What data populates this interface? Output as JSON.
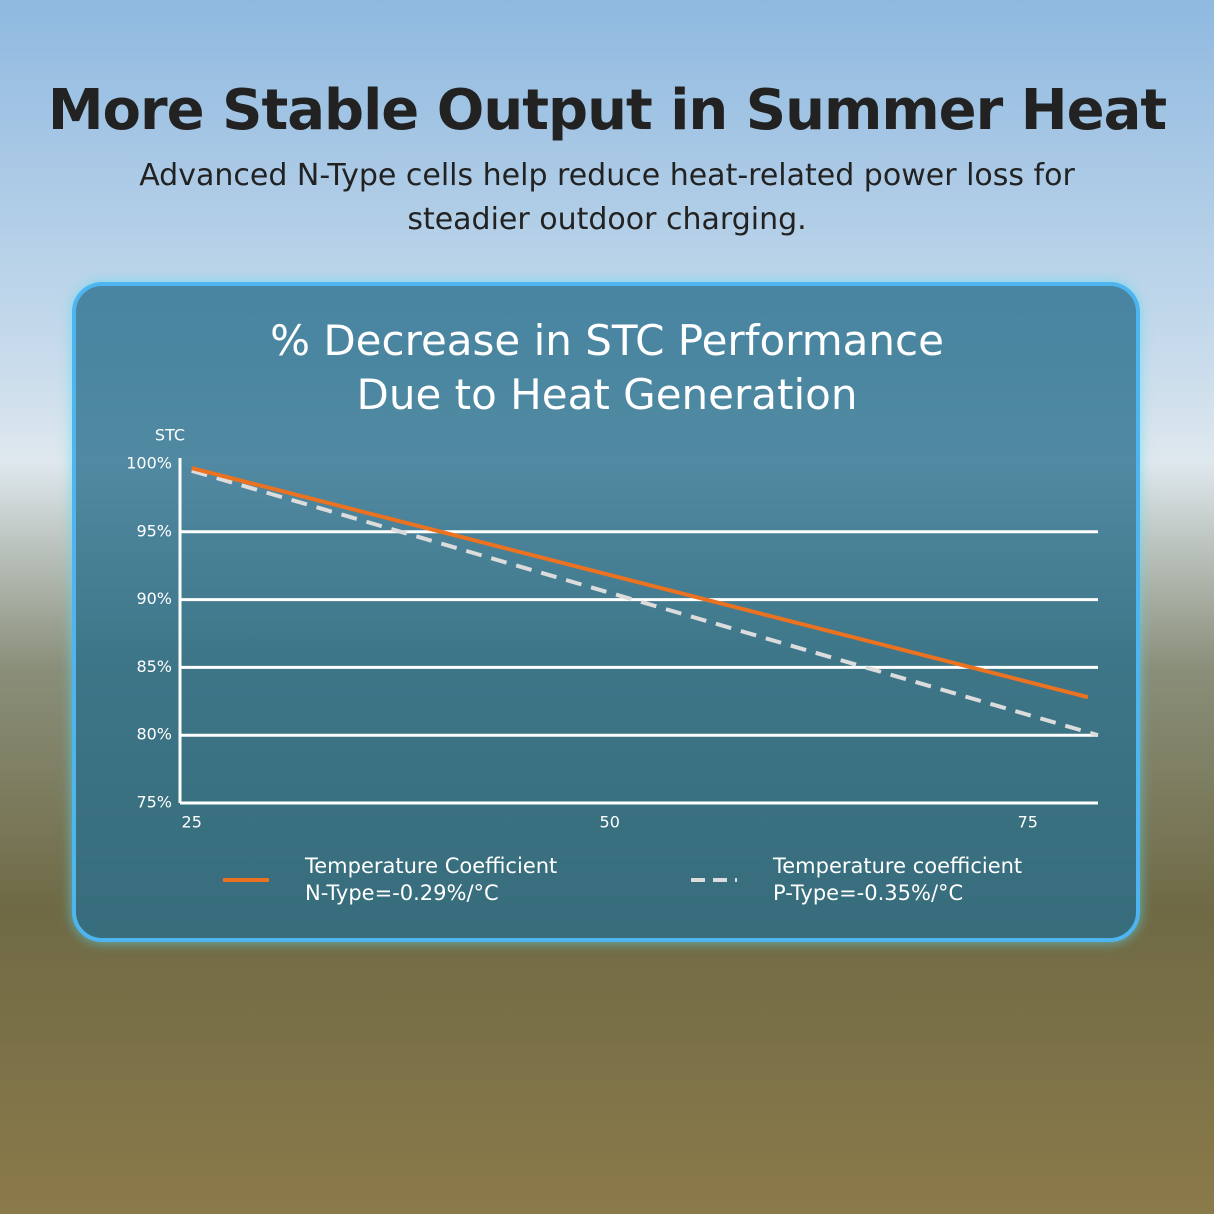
{
  "header": {
    "title": "More Stable Output in Summer Heat",
    "subtitle": "Advanced N-Type cells help reduce heat-related power loss for\nsteadier outdoor charging."
  },
  "chart_data": {
    "type": "line",
    "title": "% Decrease in STC Performance\nDue to Heat Generation",
    "y_label": "STC",
    "xlim": [
      24.3,
      79.2
    ],
    "xticks": [
      25,
      50,
      75
    ],
    "ylim": [
      75,
      100
    ],
    "yticks": [
      {
        "value": 75,
        "label": "75%"
      },
      {
        "value": 80,
        "label": "80%"
      },
      {
        "value": 85,
        "label": "85%"
      },
      {
        "value": 90,
        "label": "90%"
      },
      {
        "value": 95,
        "label": "95%"
      },
      {
        "value": 100,
        "label": "100%"
      }
    ],
    "grid": true,
    "series": [
      {
        "name": "Temperature Coefficient\nN-Type=-0.29%/°C",
        "color": "#ea7220",
        "dashed": false,
        "x": [
          25,
          78.6
        ],
        "values": [
          99.7,
          82.8
        ]
      },
      {
        "name": "Temperature coefficient\nP-Type=-0.35%/°C",
        "color": "#dcdcdc",
        "dashed": true,
        "x": [
          25,
          79.2
        ],
        "values": [
          99.5,
          80
        ]
      }
    ]
  }
}
